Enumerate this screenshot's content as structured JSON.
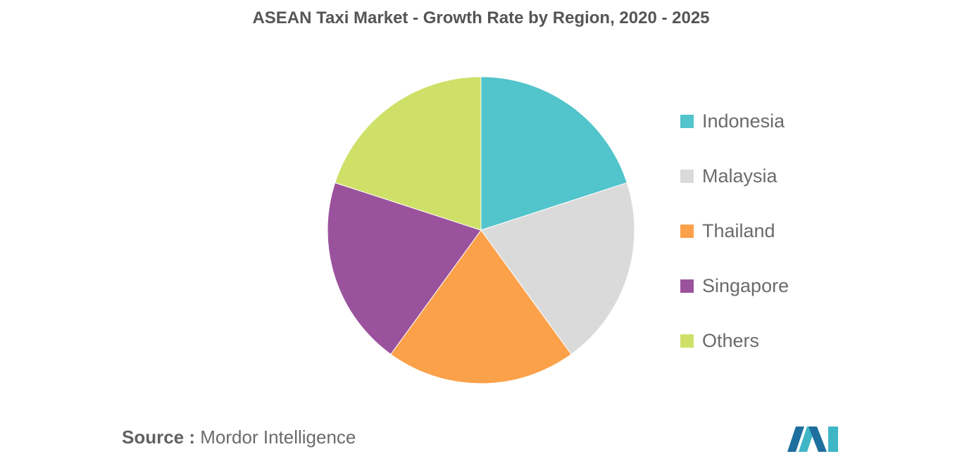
{
  "chart_data": {
    "type": "pie",
    "title": "ASEAN Taxi Market - Growth Rate by Region, 2020 - 2025",
    "categories": [
      "Indonesia",
      "Malaysia",
      "Thailand",
      "Singapore",
      "Others"
    ],
    "values": [
      20,
      20,
      20,
      20,
      20
    ],
    "colors": [
      "#52C4CB",
      "#DADADA",
      "#FBA14A",
      "#9B529D",
      "#CFE068"
    ],
    "legend_position": "right"
  },
  "source": {
    "prefix": "Source :",
    "text": "Mordor Intelligence"
  },
  "logo": {
    "icon": "mordor-intelligence-logo-icon",
    "colors": [
      "#1F6F9E",
      "#3FB6C6"
    ]
  }
}
